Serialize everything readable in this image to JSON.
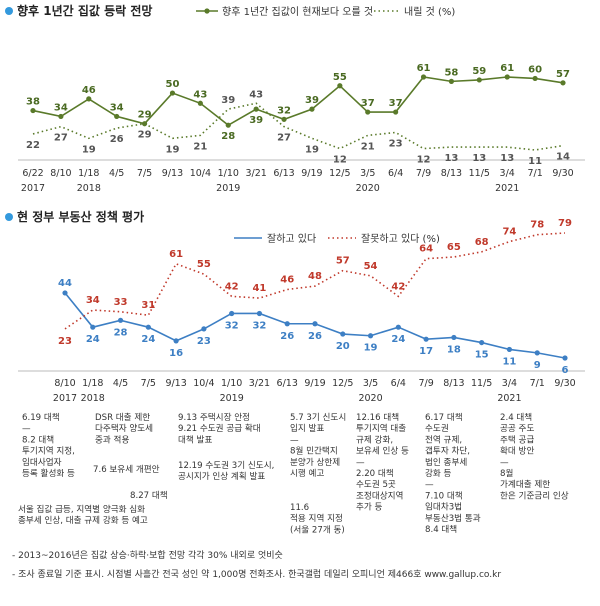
{
  "chart_data": [
    {
      "type": "line",
      "title": "향후 1년간 집값 등락 전망",
      "categories": [
        "6/22",
        "8/10",
        "1/18",
        "4/5",
        "7/5",
        "9/13",
        "10/4",
        "1/10",
        "3/21",
        "6/13",
        "9/19",
        "12/5",
        "3/5",
        "6/4",
        "7/9",
        "8/13",
        "11/5",
        "3/4",
        "7/1",
        "9/30"
      ],
      "year_labels": [
        {
          "label": "2017",
          "at": 0
        },
        {
          "label": "2018",
          "at": 2
        },
        {
          "label": "2019",
          "at": 7
        },
        {
          "label": "2020",
          "at": 12
        },
        {
          "label": "2021",
          "at": 17
        }
      ],
      "series": [
        {
          "name": "향후 1년간 집값이 현재보다 오를 것",
          "color": "#5a7a2a",
          "style": "solid",
          "values": [
            38,
            34,
            46,
            34,
            29,
            50,
            43,
            28,
            39,
            32,
            39,
            55,
            37,
            37,
            61,
            58,
            59,
            61,
            60,
            57
          ]
        },
        {
          "name": "내릴 것 (%)",
          "color": "#5a7a2a",
          "style": "dotted",
          "values": [
            22,
            27,
            19,
            26,
            29,
            19,
            21,
            39,
            43,
            27,
            19,
            12,
            21,
            23,
            12,
            13,
            13,
            13,
            11,
            14
          ]
        }
      ]
    },
    {
      "type": "line",
      "title": "현 정부 부동산 정책 평가",
      "categories": [
        "8/10",
        "1/18",
        "4/5",
        "7/5",
        "9/13",
        "10/4",
        "1/10",
        "3/21",
        "6/13",
        "9/19",
        "12/5",
        "3/5",
        "6/4",
        "7/9",
        "8/13",
        "11/5",
        "3/4",
        "7/1",
        "9/30"
      ],
      "year_labels": [
        {
          "label": "2017",
          "at": 0
        },
        {
          "label": "2018",
          "at": 1
        },
        {
          "label": "2019",
          "at": 6
        },
        {
          "label": "2020",
          "at": 11
        },
        {
          "label": "2021",
          "at": 16
        }
      ],
      "series": [
        {
          "name": "잘하고 있다",
          "color": "#3d7fc4",
          "style": "solid",
          "values": [
            44,
            24,
            28,
            24,
            16,
            23,
            32,
            32,
            26,
            26,
            20,
            19,
            24,
            17,
            18,
            15,
            11,
            9,
            6
          ]
        },
        {
          "name": "잘못하고 있다 (%)",
          "color": "#c0392b",
          "style": "dotted",
          "values": [
            23,
            34,
            33,
            31,
            61,
            55,
            42,
            41,
            46,
            48,
            57,
            54,
            42,
            64,
            65,
            68,
            74,
            78,
            79
          ]
        }
      ],
      "events": [
        {
          "lines": [
            "6.19 대책",
            "—",
            "8.2 대책",
            "투기지역 지정,",
            "임대사업자",
            "등록 활성화 등"
          ]
        },
        {
          "lines": [
            "DSR 대출 제한",
            "다주택자 양도세",
            "중과 적용"
          ]
        },
        {
          "lines": [
            "7.6 보유세 개편안"
          ]
        },
        {
          "lines": [
            "8.27 대책"
          ]
        },
        {
          "lines": [
            "서울 집값 급등, 지역별 양극화 심화",
            "종부세 인상, 대출 규제 강화 등 예고"
          ]
        },
        {
          "lines": [
            "9.13 주택시장 안정",
            "9.21 수도권 공급 확대",
            "대책 발표"
          ]
        },
        {
          "lines": [
            "12.19 수도권 3기 신도시,",
            "공시지가 인상 계획 발표"
          ]
        },
        {
          "lines": [
            "5.7 3기 신도시",
            "입지 발표",
            "—",
            "8월 민간택지",
            "분양가 상한제",
            "시행 예고"
          ]
        },
        {
          "lines": [
            "11.6",
            "적용 지역 지정",
            "(서울 27개 동)"
          ]
        },
        {
          "lines": [
            "12.16 대책",
            "투기지역 대출",
            "규제 강화,",
            "보유세 인상 등",
            "—",
            "2.20 대책",
            "수도권 5곳",
            "조정대상지역",
            "추가 등"
          ]
        },
        {
          "lines": [
            "6.17 대책",
            "수도권",
            "전역 규제,",
            "갭투자 차단,",
            "법인 종부세",
            "강화 등",
            "—",
            "7.10 대책",
            "임대차3법",
            "부동산3법 통과",
            "8.4 대책"
          ]
        },
        {
          "lines": [
            "2.4 대책",
            "공공 주도",
            "주택 공급",
            "확대 방안",
            "—",
            "8월",
            "가계대출 제한",
            "한은 기준금리 인상"
          ]
        }
      ]
    }
  ],
  "footnotes": [
    "- 2013~2016년은 집값 상승·하락·보합 전망 각각 30% 내외로 엇비슷",
    "- 조사 종료일 기준 표시. 시점별 사흘간 전국 성인 약 1,000명 전화조사. 한국갤럽 데일리 오피니언 제466호 www.gallup.co.kr"
  ]
}
